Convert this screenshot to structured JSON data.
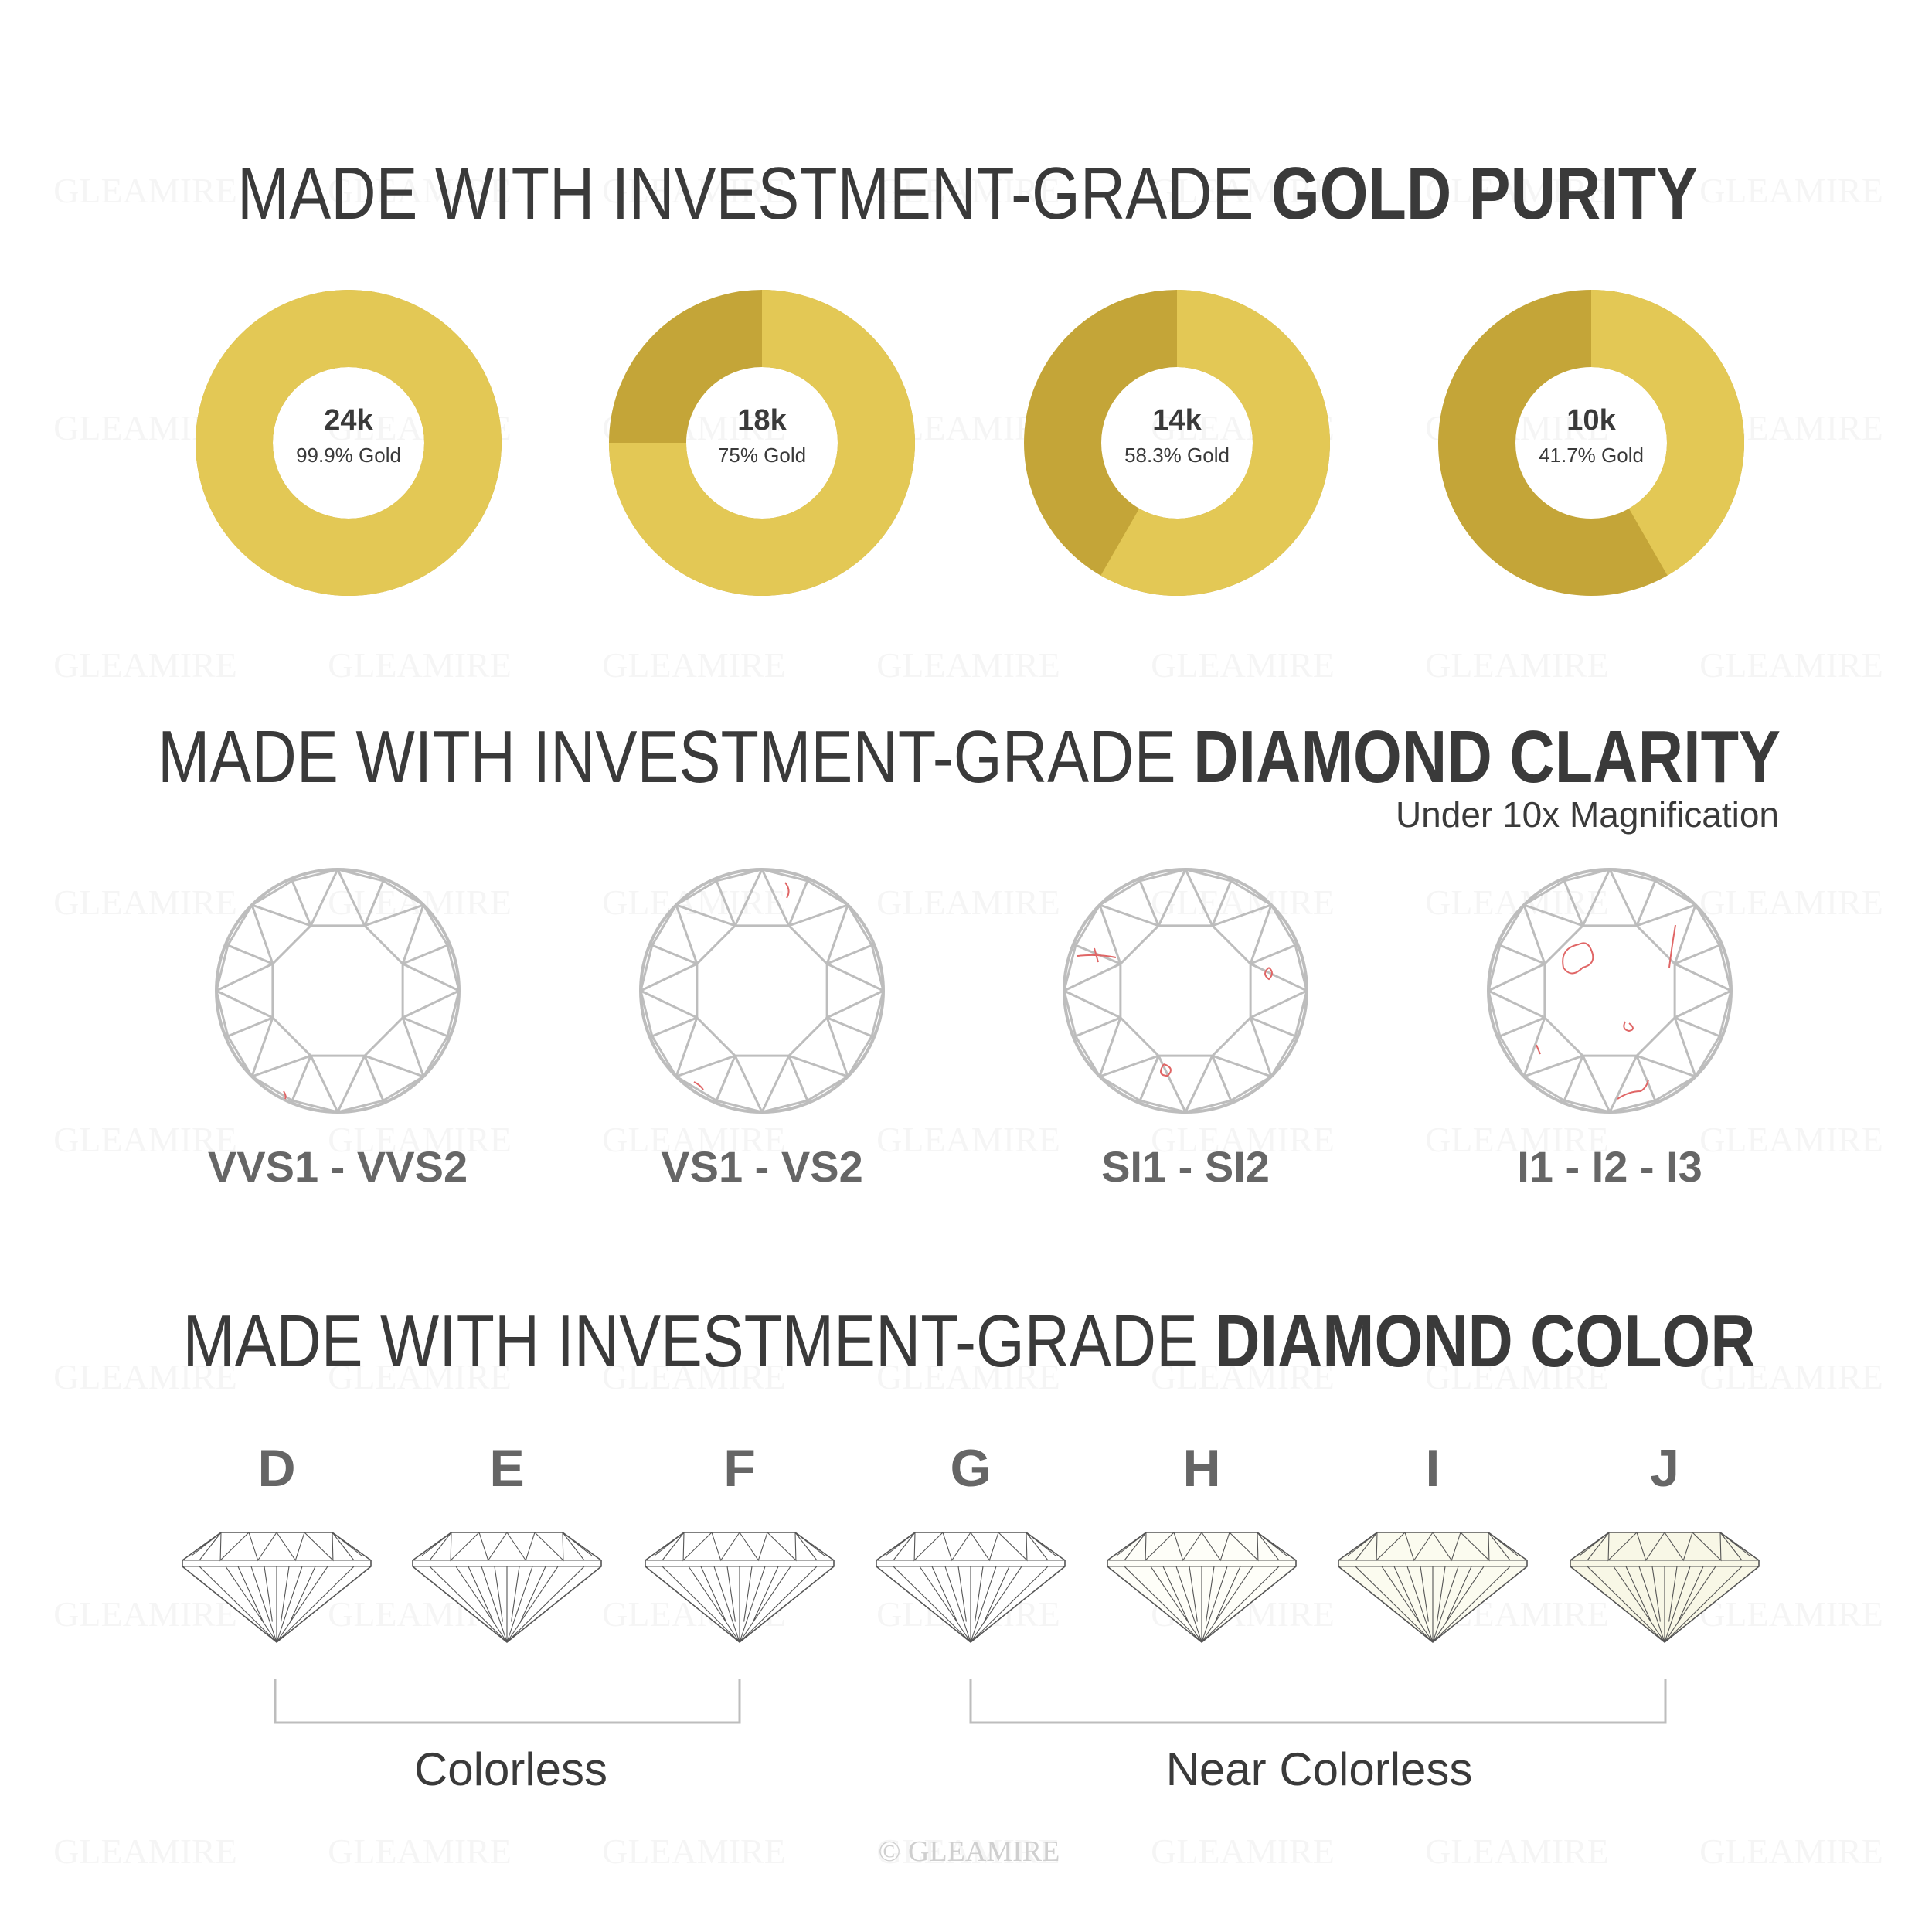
{
  "watermark": "GLEAMIRE",
  "colors": {
    "gold_light": "#E3C855",
    "gold_dark": "#C4A538",
    "line": "#BDBDBD",
    "inclusion": "#E06666",
    "text": "#3A3A3A",
    "label": "#666666"
  },
  "gold": {
    "title_regular": "MADE WITH INVESTMENT-GRADE ",
    "title_bold": "GOLD PURITY",
    "items": [
      {
        "karat": "24k",
        "label": "99.9% Gold",
        "percent": 99.9
      },
      {
        "karat": "18k",
        "label": "75% Gold",
        "percent": 75
      },
      {
        "karat": "14k",
        "label": "58.3% Gold",
        "percent": 58.3
      },
      {
        "karat": "10k",
        "label": "41.7% Gold",
        "percent": 41.7
      }
    ]
  },
  "clarity": {
    "title_regular": "MADE WITH INVESTMENT-GRADE ",
    "title_bold": "DIAMOND CLARITY",
    "subtitle": "Under 10x Magnification",
    "grades": [
      "VVS1 - VVS2",
      "VS1 - VS2",
      "SI1 - SI2",
      "I1 - I2 - I3"
    ]
  },
  "color": {
    "title_regular": "MADE WITH INVESTMENT-GRADE ",
    "title_bold": "DIAMOND COLOR",
    "grades": [
      "D",
      "E",
      "F",
      "G",
      "H",
      "I",
      "J"
    ],
    "tints": [
      "#FFFFFF",
      "#FFFFFF",
      "#FFFFFF",
      "#FFFFFF",
      "#FEFEF8",
      "#FBFBEF",
      "#F8F7E6"
    ],
    "groups": [
      {
        "label": "Colorless"
      },
      {
        "label": "Near Colorless"
      }
    ]
  },
  "footer": {
    "copyright": "© GLEAMIRE"
  }
}
